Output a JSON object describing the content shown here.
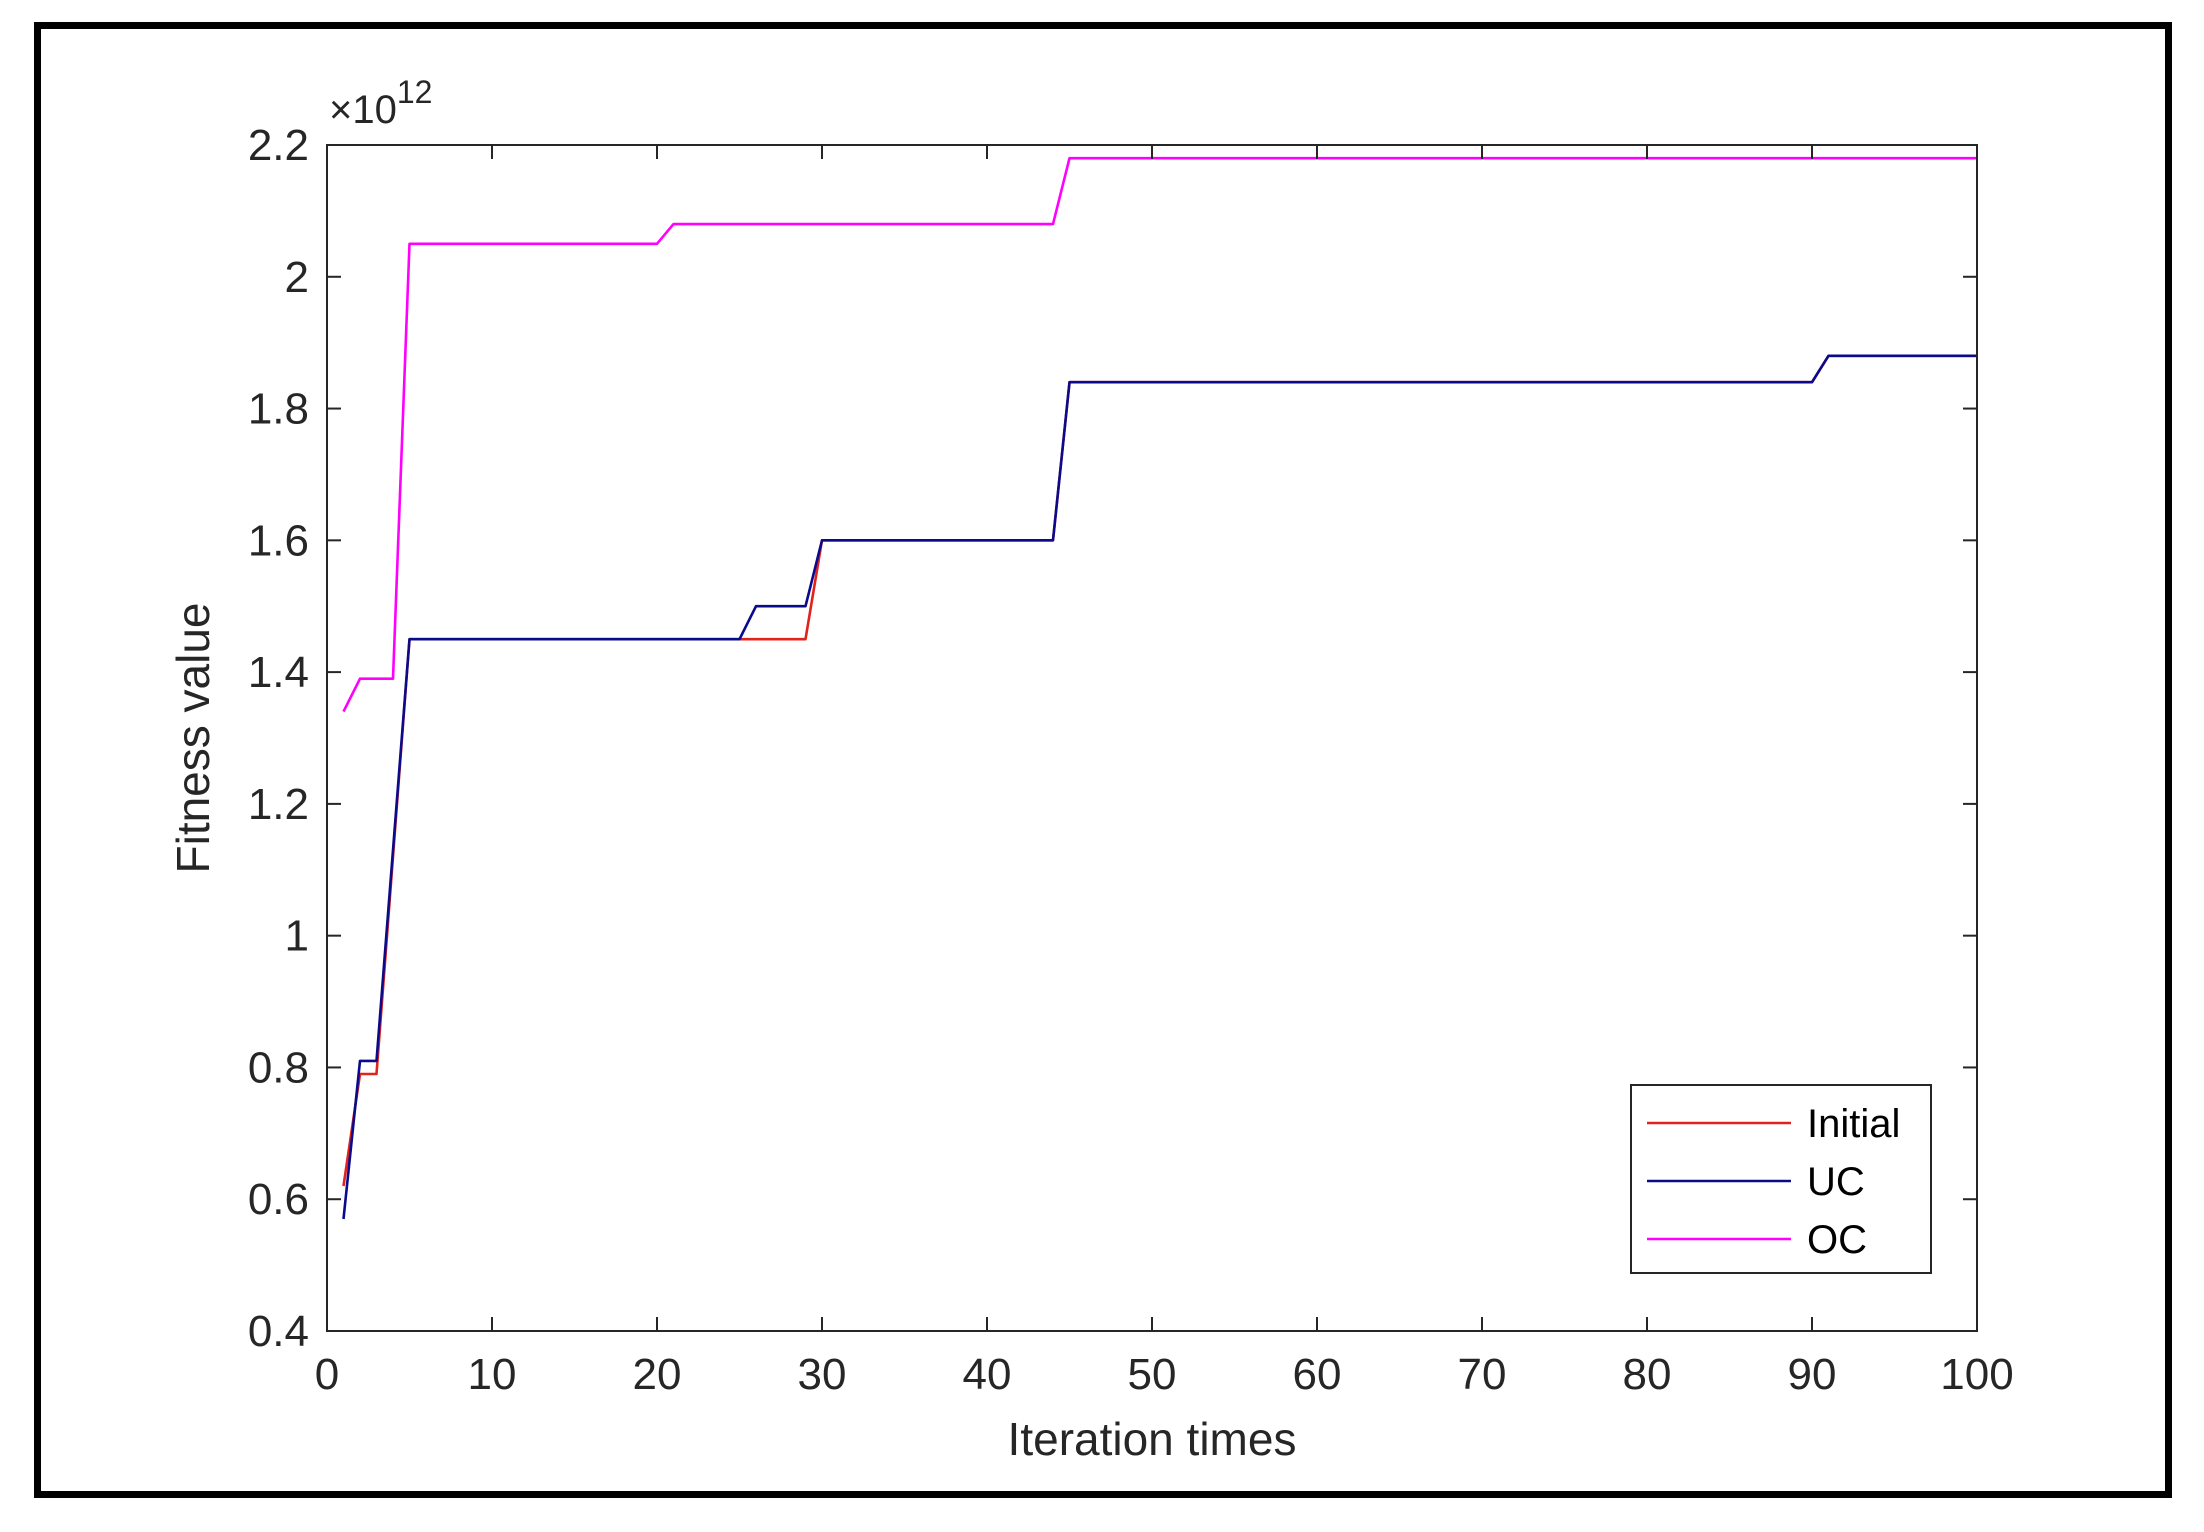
{
  "chart_data": {
    "type": "line",
    "title": "",
    "xlabel": "Iteration times",
    "ylabel": "Fitness value",
    "y_exponent_label": "×10",
    "y_exponent_power": "12",
    "xlim": [
      0,
      100
    ],
    "ylim": [
      0.4,
      2.2
    ],
    "x_ticks": [
      0,
      10,
      20,
      30,
      40,
      50,
      60,
      70,
      80,
      90,
      100
    ],
    "x_tick_labels": [
      "0",
      "10",
      "20",
      "30",
      "40",
      "50",
      "60",
      "70",
      "80",
      "90",
      "100"
    ],
    "y_ticks": [
      0.4,
      0.6,
      0.8,
      1.0,
      1.2,
      1.4,
      1.6,
      1.8,
      2.0,
      2.2
    ],
    "y_tick_labels": [
      "0.4",
      "0.6",
      "0.8",
      "1",
      "1.2",
      "1.4",
      "1.6",
      "1.8",
      "2",
      "2.2"
    ],
    "grid": false,
    "legend_position": "bottom-right",
    "series": [
      {
        "name": "Initial",
        "color": "#e0231c",
        "x": [
          1,
          2,
          3,
          5,
          25,
          29,
          30,
          44,
          45,
          90,
          91,
          100
        ],
        "y": [
          0.62,
          0.79,
          0.79,
          1.45,
          1.45,
          1.45,
          1.6,
          1.6,
          1.84,
          1.84,
          1.88,
          1.88
        ]
      },
      {
        "name": "UC",
        "color": "#0a0a8a",
        "x": [
          1,
          2,
          3,
          5,
          25,
          26,
          29,
          30,
          44,
          45,
          90,
          91,
          100
        ],
        "y": [
          0.57,
          0.81,
          0.81,
          1.45,
          1.45,
          1.5,
          1.5,
          1.6,
          1.6,
          1.84,
          1.84,
          1.88,
          1.88
        ]
      },
      {
        "name": "OC",
        "color": "#ff00ff",
        "x": [
          1,
          2,
          4,
          5,
          20,
          21,
          44,
          45,
          100
        ],
        "y": [
          1.34,
          1.39,
          1.39,
          2.05,
          2.05,
          2.08,
          2.08,
          2.18,
          2.18
        ]
      }
    ]
  }
}
